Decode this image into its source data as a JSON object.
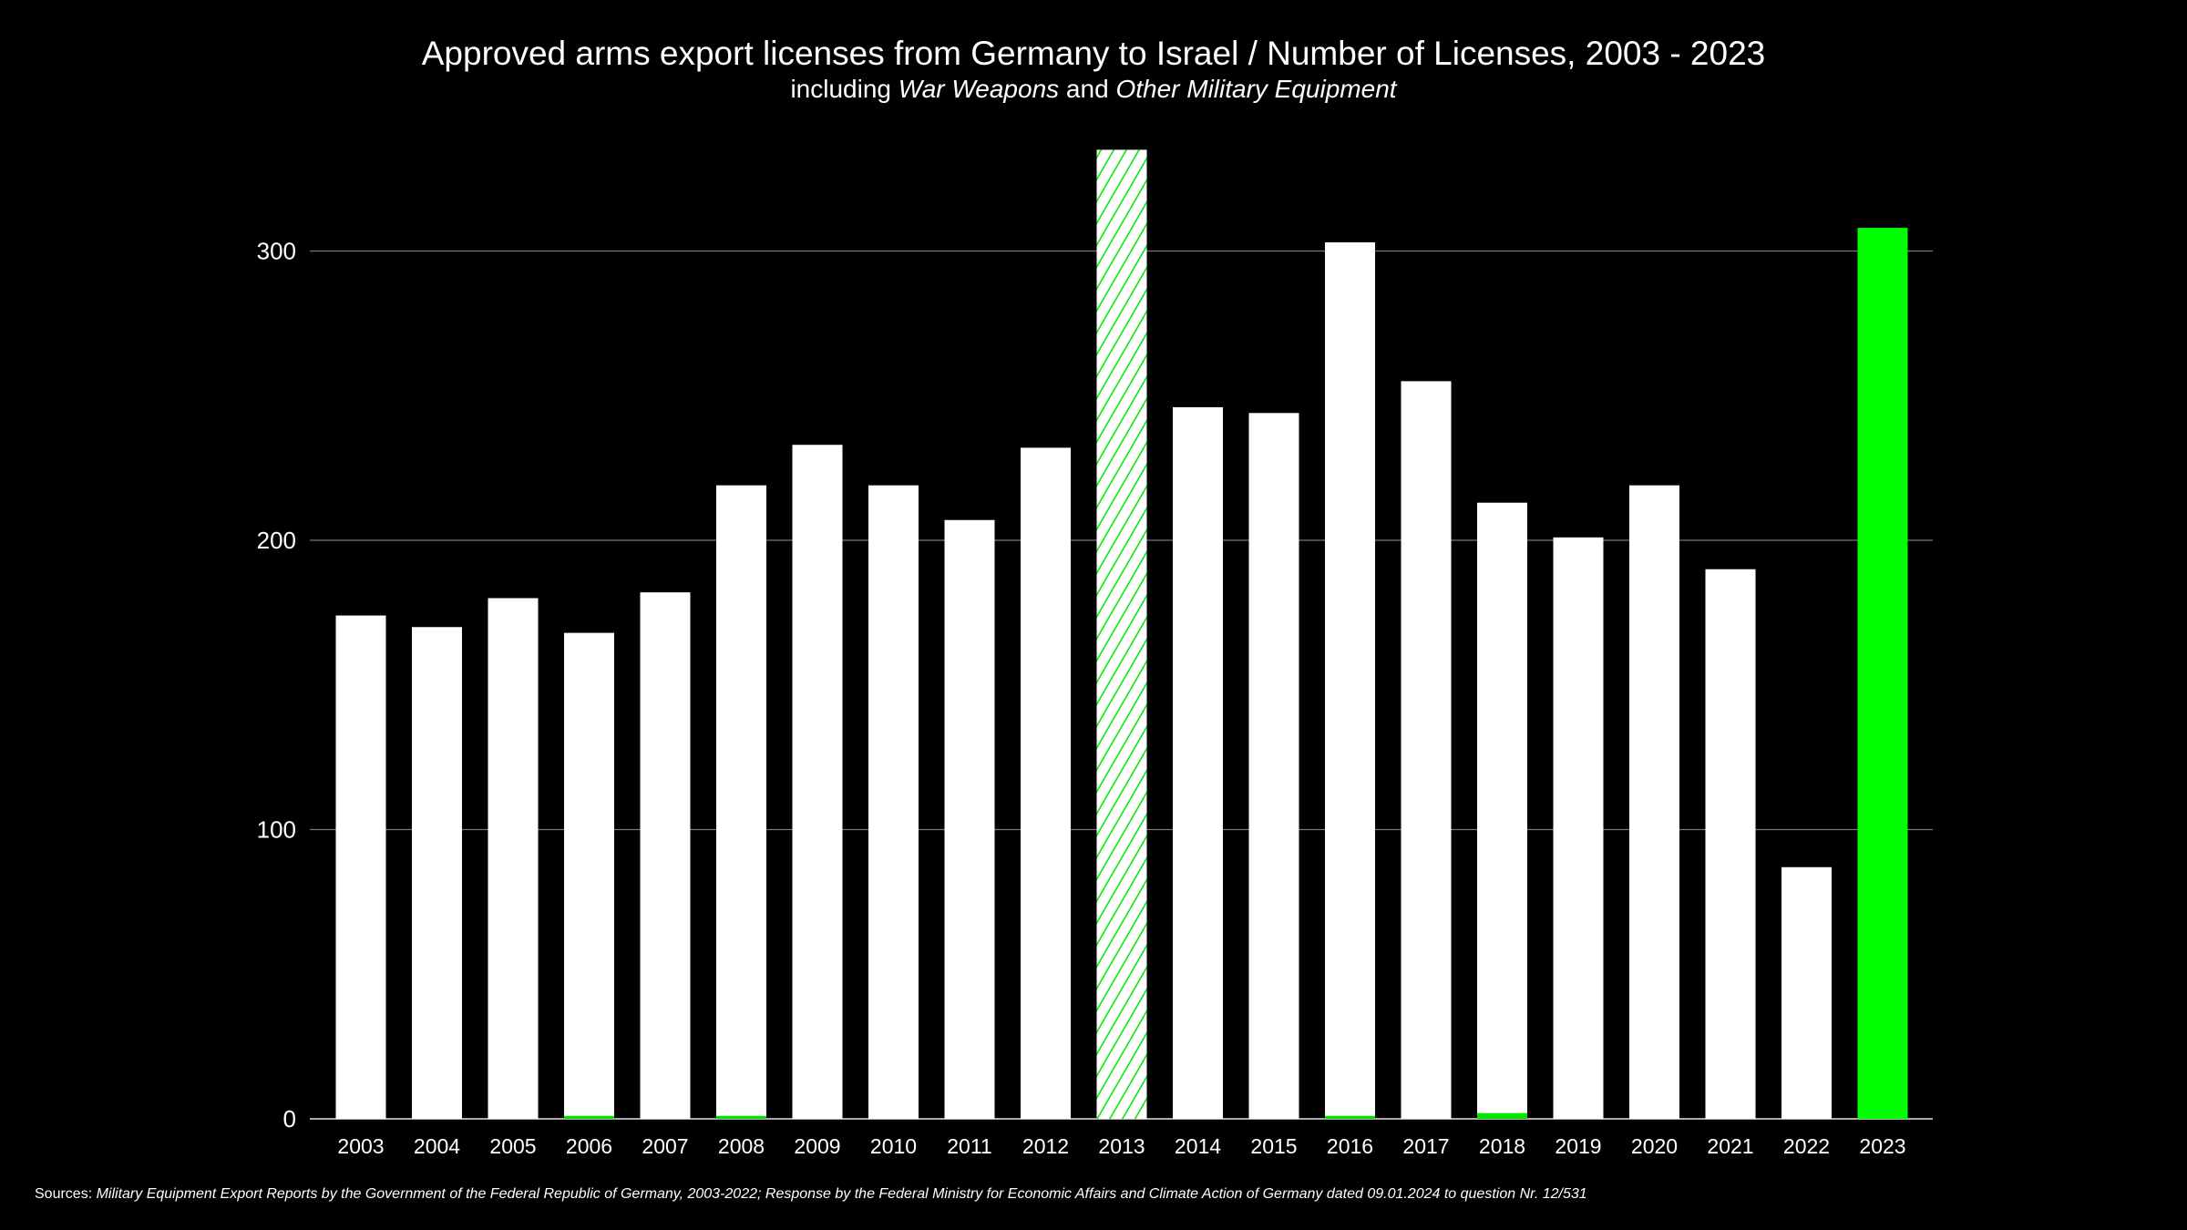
{
  "chart_data": {
    "type": "bar",
    "title": "Approved arms export licenses from Germany to Israel / Number of Licenses, 2003 - 2023",
    "subtitle_parts": [
      "including ",
      "War Weapons",
      " and ",
      "Other Military Equipment"
    ],
    "xlabel": "",
    "ylabel": "",
    "ylim": [
      0,
      340
    ],
    "yticks": [
      0,
      100,
      200,
      300
    ],
    "grid": true,
    "categories": [
      "2003",
      "2004",
      "2005",
      "2006",
      "2007",
      "2008",
      "2009",
      "2010",
      "2011",
      "2012",
      "2013",
      "2014",
      "2015",
      "2016",
      "2017",
      "2018",
      "2019",
      "2020",
      "2021",
      "2022",
      "2023"
    ],
    "series": [
      {
        "values": [
          174,
          170,
          180,
          168,
          182,
          219,
          233,
          219,
          207,
          232,
          335,
          246,
          244,
          303,
          255,
          213,
          201,
          219,
          190,
          87,
          308
        ],
        "color": "#ffffff"
      },
      {
        "values": [
          0,
          0,
          0,
          1,
          0,
          1,
          0,
          0,
          0,
          0,
          0,
          0,
          0,
          1,
          0,
          2,
          0,
          0,
          0,
          0,
          0
        ],
        "color": "#00e600"
      }
    ],
    "highlight": {
      "2013": "hatched-green",
      "2023": "#00ff00"
    },
    "colors": {
      "background": "#000000",
      "bar": "#ffffff",
      "accent": "#00ff00",
      "grid": "#777777"
    }
  },
  "sources": {
    "label": "Sources:",
    "text": "Military Equipment Export Reports by the Government of the Federal Republic of Germany, 2003-2022; Response by the Federal Ministry for Economic Affairs and Climate Action of Germany dated 09.01.2024 to question Nr. 12/531"
  }
}
